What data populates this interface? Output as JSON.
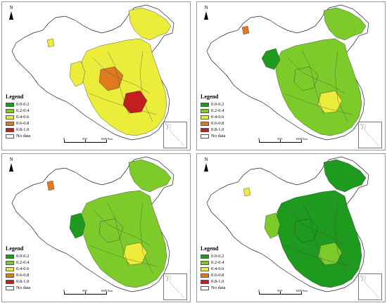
{
  "north_label": "N",
  "legend": {
    "title": "Legend",
    "classes": [
      {
        "label": "0.0-0.2",
        "color": "#1e9a1e"
      },
      {
        "label": "0.2-0.4",
        "color": "#7ccb2a"
      },
      {
        "label": "0.4-0.6",
        "color": "#ecec3a"
      },
      {
        "label": "0.6-0.8",
        "color": "#e07a1e"
      },
      {
        "label": "0.8-1.0",
        "color": "#c41e1e"
      },
      {
        "label": "No data",
        "color": "#ffffff"
      }
    ]
  },
  "scale": {
    "labels": [
      "0",
      "500",
      "1000 Km"
    ]
  },
  "panels": [
    {
      "id": "a",
      "dominant_class": "0.4-0.6"
    },
    {
      "id": "b",
      "dominant_class": "0.2-0.4"
    },
    {
      "id": "c",
      "dominant_class": "0.2-0.4"
    },
    {
      "id": "d",
      "dominant_class": "0.0-0.2"
    }
  ]
}
